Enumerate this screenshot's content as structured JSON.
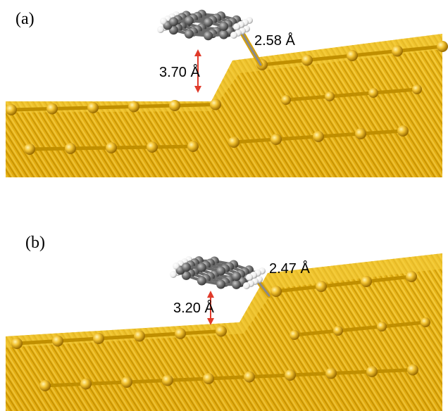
{
  "panels": [
    {
      "label": "(a)",
      "height_label": "3.70 Å",
      "bond_label": "2.58 Å"
    },
    {
      "label": "(b)",
      "height_label": "3.20 Å",
      "bond_label": "2.47 Å"
    }
  ],
  "colors": {
    "gold_light": "#f2c230",
    "gold_mid": "#e2aa12",
    "gold_dark": "#a87800",
    "carbon": "#7a7a7a",
    "carbon_dark": "#555555",
    "hydrogen": "#f2f2f2",
    "arrow": "#e03a2a"
  }
}
